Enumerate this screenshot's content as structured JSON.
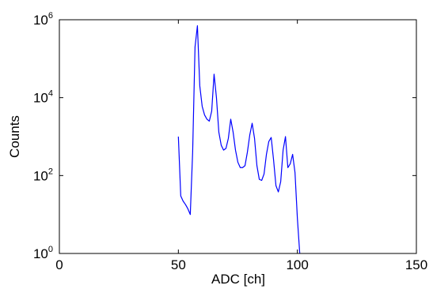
{
  "chart_data": {
    "type": "line",
    "title": "",
    "xlabel": "ADC [ch]",
    "ylabel": "Counts",
    "xlim": [
      0,
      150
    ],
    "ylim": [
      1,
      1000000
    ],
    "yscale": "log",
    "grid": false,
    "x_ticks": [
      0,
      50,
      100,
      150
    ],
    "x_tick_labels": [
      "0",
      "50",
      "100",
      "150"
    ],
    "y_ticks": [
      1,
      100,
      10000,
      1000000
    ],
    "y_tick_labels": [
      {
        "base": "10",
        "exp": "0"
      },
      {
        "base": "10",
        "exp": "2"
      },
      {
        "base": "10",
        "exp": "4"
      },
      {
        "base": "10",
        "exp": "6"
      }
    ],
    "series": [
      {
        "color": "#0000ff",
        "x": [
          50,
          51,
          52,
          53,
          54,
          55,
          56,
          57,
          58,
          59,
          60,
          61,
          62,
          63,
          64,
          65,
          66,
          67,
          68,
          69,
          70,
          71,
          72,
          73,
          74,
          75,
          76,
          77,
          78,
          79,
          80,
          81,
          82,
          83,
          84,
          85,
          86,
          87,
          88,
          89,
          90,
          91,
          92,
          93,
          94,
          95,
          96,
          97,
          98,
          99,
          100,
          101
        ],
        "y": [
          1000,
          30,
          22,
          18,
          14,
          10,
          400,
          200000,
          700000,
          20000,
          6000,
          3600,
          2800,
          2500,
          4500,
          40000,
          10000,
          1300,
          600,
          450,
          500,
          900,
          2800,
          1300,
          450,
          220,
          160,
          160,
          180,
          400,
          1100,
          2200,
          900,
          180,
          80,
          75,
          110,
          350,
          750,
          950,
          250,
          55,
          38,
          70,
          450,
          1000,
          160,
          200,
          350,
          120,
          8,
          1
        ]
      }
    ]
  }
}
